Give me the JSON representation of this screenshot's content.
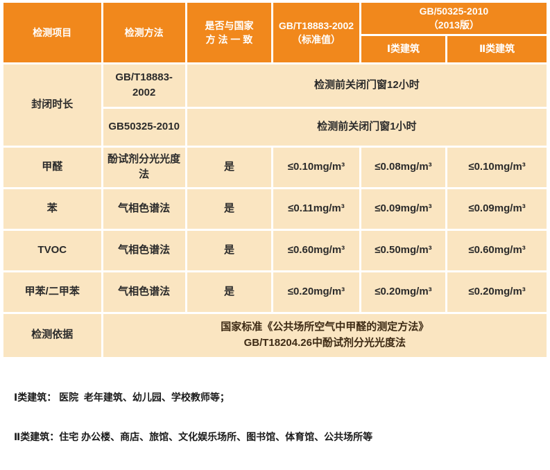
{
  "table": {
    "header": {
      "col_item": "检测项目",
      "col_method": "检测方法",
      "col_consistent": "是否与国家\n方 法 一 致",
      "col_gbt18883": "GB/T18883-2002\n（标准值）",
      "col_gb50325": "GB/50325-2010\n（2013版）",
      "col_class1": "Ⅰ类建筑",
      "col_class2": "Ⅱ类建筑"
    },
    "closure": {
      "item": "封闭时长",
      "rows": [
        {
          "method": "GB/T18883-2002",
          "note": "检测前关闭门窗12小时"
        },
        {
          "method": "GB50325-2010",
          "note": "检测前关闭门窗1小时"
        }
      ]
    },
    "rows": [
      {
        "item": "甲醛",
        "method": "酚试剂分光光度法",
        "consistent": "是",
        "gbt": "≤0.10mg/m³",
        "class1": "≤0.08mg/m³",
        "class2": "≤0.10mg/m³"
      },
      {
        "item": "苯",
        "method": "气相色谱法",
        "consistent": "是",
        "gbt": "≤0.11mg/m³",
        "class1": "≤0.09mg/m³",
        "class2": "≤0.09mg/m³"
      },
      {
        "item": "TVOC",
        "method": "气相色谱法",
        "consistent": "是",
        "gbt": "≤0.60mg/m³",
        "class1": "≤0.50mg/m³",
        "class2": "≤0.60mg/m³"
      },
      {
        "item": "甲苯/二甲苯",
        "method": "气相色谱法",
        "consistent": "是",
        "gbt": "≤0.20mg/m³",
        "class1": "≤0.20mg/m³",
        "class2": "≤0.20mg/m³"
      }
    ],
    "basis": {
      "item": "检测依据",
      "content": "国家标准《公共场所空气中甲醛的测定方法》\nGB/T18204.26中酚试剂分光光度法"
    }
  },
  "footnotes": {
    "line1": "Ⅰ类建筑： 医院  老年建筑、幼儿园、学校教师等；",
    "line2": "Ⅱ类建筑：住宅 办公楼、商店、旅馆、文化娱乐场所、图书馆、体育馆、公共场所等"
  },
  "colors": {
    "header_bg": "#F1881C",
    "body_bg": "#FAE5C1",
    "header_text": "#FFFFFF",
    "body_text": "#2B2B2B"
  }
}
